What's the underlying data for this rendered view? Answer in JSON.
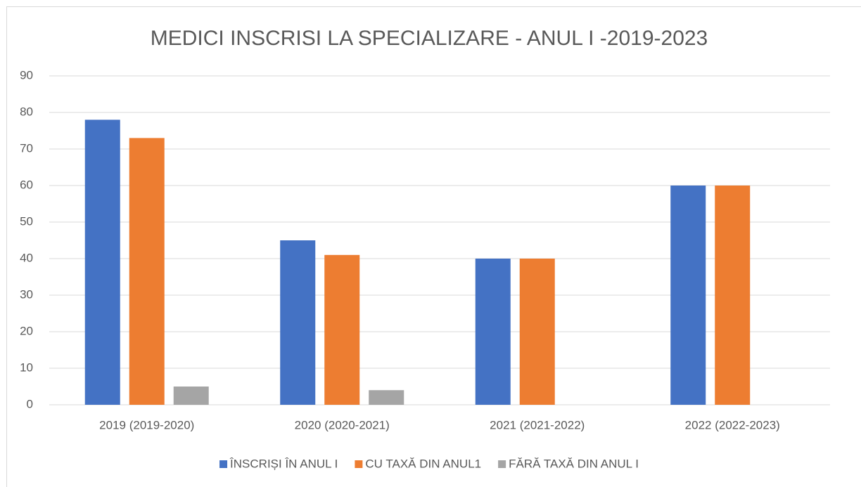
{
  "chart_data": {
    "type": "bar",
    "title": "MEDICI INSCRISI LA SPECIALIZARE -  ANUL I  -2019-2023",
    "categories": [
      "2019 (2019-2020)",
      "2020 (2020-2021)",
      "2021 (2021-2022)",
      "2022 (2022-2023)"
    ],
    "series": [
      {
        "name": "ÎNSCRIȘI ÎN ANUL I",
        "color": "#4472c4",
        "values": [
          78,
          45,
          40,
          60
        ]
      },
      {
        "name": "CU TAXĂ DIN ANUL1",
        "color": "#ed7d31",
        "values": [
          73,
          41,
          40,
          60
        ]
      },
      {
        "name": "FĂRĂ TAXĂ DIN ANUL I",
        "color": "#a5a5a5",
        "values": [
          5,
          4,
          0,
          0
        ]
      }
    ],
    "ylim": [
      0,
      90
    ],
    "yticks": [
      0,
      10,
      20,
      30,
      40,
      50,
      60,
      70,
      80,
      90
    ],
    "grid": true,
    "legend": "bottom"
  }
}
